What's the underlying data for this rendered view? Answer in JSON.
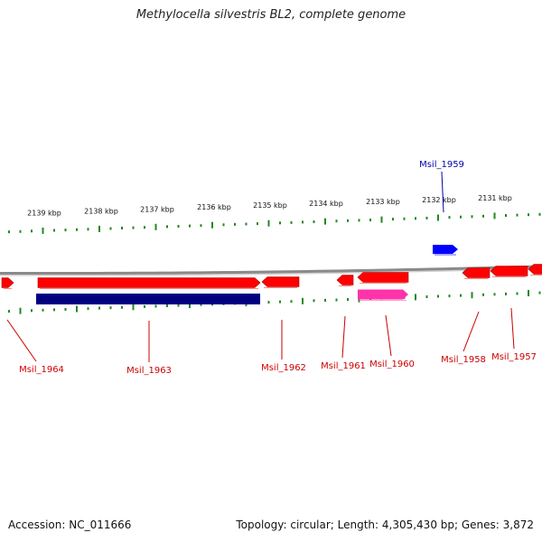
{
  "title": "Methylocella silvestris BL2, complete genome",
  "footer": {
    "accession": "Accession: NC_011666",
    "summary": "Topology: circular; Length: 4,305,430 bp; Genes: 3,872"
  },
  "colors": {
    "gene_forward": "#ff0000",
    "gene_reverse": "#ff0000",
    "cds_dark": "#000080",
    "feature_blue": "#0000ff",
    "feature_pink": "#ff33aa",
    "ticks": "#228822",
    "backbone": "#8a8a8a",
    "label_red": "#cc0000",
    "label_blue": "#0000aa"
  },
  "scale": {
    "unit": "kbp",
    "labels": [
      "2139 kbp",
      "2138 kbp",
      "2137 kbp",
      "2136 kbp",
      "2135 kbp",
      "2134 kbp",
      "2133 kbp",
      "2132 kbp",
      "2131 kbp"
    ]
  },
  "features": [
    {
      "name": "Msil_1964",
      "color": "red",
      "strand": "+"
    },
    {
      "name": "Msil_1963",
      "color": "red",
      "strand": "+"
    },
    {
      "name": "Msil_1963",
      "color": "navy",
      "strand": "+"
    },
    {
      "name": "Msil_1962",
      "color": "red",
      "strand": "-"
    },
    {
      "name": "Msil_1961",
      "color": "red",
      "strand": "-"
    },
    {
      "name": "Msil_1960",
      "color": "red",
      "strand": "-"
    },
    {
      "name": "Msil_1960",
      "color": "pink",
      "strand": "+"
    },
    {
      "name": "Msil_1959",
      "color": "blue",
      "strand": "+"
    },
    {
      "name": "Msil_1958",
      "color": "red",
      "strand": "-"
    },
    {
      "name": "Msil_1957",
      "color": "red",
      "strand": "-"
    },
    {
      "name": "",
      "color": "red",
      "strand": "-"
    }
  ],
  "labels": [
    {
      "text": "Msil_1964",
      "color": "red"
    },
    {
      "text": "Msil_1963",
      "color": "red"
    },
    {
      "text": "Msil_1962",
      "color": "red"
    },
    {
      "text": "Msil_1961",
      "color": "red"
    },
    {
      "text": "Msil_1960",
      "color": "red"
    },
    {
      "text": "Msil_1958",
      "color": "red"
    },
    {
      "text": "Msil_1957",
      "color": "red"
    },
    {
      "text": "Msil_1959",
      "color": "blue"
    }
  ]
}
